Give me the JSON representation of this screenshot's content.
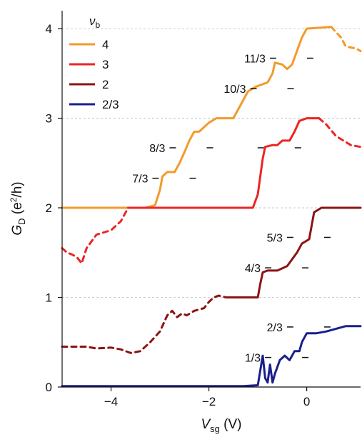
{
  "chart_data": {
    "type": "line",
    "xlabel": {
      "main": "V",
      "sub": "sg",
      "unit": " (V)"
    },
    "ylabel": {
      "main": "G",
      "sub": "D",
      "unit_pre": " (e",
      "unit_sup": "2",
      "unit_post": "/h)"
    },
    "xlim": [
      -5,
      1.1
    ],
    "ylim": [
      0,
      4.2
    ],
    "xticks": [
      -4,
      -2,
      0
    ],
    "yticks": [
      0,
      1,
      2,
      3,
      4
    ],
    "grid_y": true,
    "legend_title": {
      "main": "ν",
      "sub": "b"
    },
    "legend_position": "top-left",
    "series": [
      {
        "name": "4",
        "color": "#f39a2c",
        "solid": [
          [
            -5,
            2
          ],
          [
            -3.3,
            2
          ],
          [
            -3.1,
            2.03
          ],
          [
            -3.0,
            2.2
          ],
          [
            -2.95,
            2.35
          ],
          [
            -2.85,
            2.4
          ],
          [
            -2.7,
            2.4
          ],
          [
            -2.6,
            2.5
          ],
          [
            -2.5,
            2.62
          ],
          [
            -2.4,
            2.75
          ],
          [
            -2.3,
            2.85
          ],
          [
            -2.2,
            2.85
          ],
          [
            -2.1,
            2.9
          ],
          [
            -2.0,
            2.95
          ],
          [
            -1.85,
            3.0
          ],
          [
            -1.6,
            3.0
          ],
          [
            -1.5,
            3.0
          ],
          [
            -1.4,
            3.1
          ],
          [
            -1.3,
            3.2
          ],
          [
            -1.2,
            3.3
          ],
          [
            -1.05,
            3.35
          ],
          [
            -0.8,
            3.4
          ],
          [
            -0.7,
            3.5
          ],
          [
            -0.65,
            3.62
          ],
          [
            -0.5,
            3.6
          ],
          [
            -0.4,
            3.55
          ],
          [
            -0.3,
            3.6
          ],
          [
            -0.2,
            3.75
          ],
          [
            -0.1,
            3.9
          ],
          [
            0.0,
            4.0
          ],
          [
            0.5,
            4.02
          ]
        ],
        "dashed": [
          [
            0.5,
            4.02
          ],
          [
            0.7,
            3.9
          ],
          [
            0.8,
            3.8
          ],
          [
            1.0,
            3.78
          ],
          [
            1.1,
            3.75
          ]
        ]
      },
      {
        "name": "3",
        "color": "#ee2424",
        "dashed": [
          [
            -5,
            1.55
          ],
          [
            -4.9,
            1.5
          ],
          [
            -4.8,
            1.48
          ],
          [
            -4.7,
            1.45
          ],
          [
            -4.6,
            1.38
          ],
          [
            -4.5,
            1.55
          ],
          [
            -4.3,
            1.7
          ],
          [
            -4.0,
            1.75
          ],
          [
            -3.9,
            1.8
          ],
          [
            -3.8,
            1.85
          ],
          [
            -3.65,
            2.0
          ]
        ],
        "solid": [
          [
            -3.65,
            2.0
          ],
          [
            -1.1,
            2.0
          ],
          [
            -1.0,
            2.15
          ],
          [
            -0.95,
            2.35
          ],
          [
            -0.9,
            2.55
          ],
          [
            -0.85,
            2.68
          ],
          [
            -0.7,
            2.7
          ],
          [
            -0.6,
            2.7
          ],
          [
            -0.5,
            2.75
          ],
          [
            -0.35,
            2.75
          ],
          [
            -0.25,
            2.85
          ],
          [
            -0.15,
            2.97
          ],
          [
            0.0,
            3.0
          ],
          [
            0.25,
            3.0
          ]
        ],
        "dashed2": [
          [
            0.25,
            3.0
          ],
          [
            0.4,
            2.93
          ],
          [
            0.6,
            2.8
          ],
          [
            0.75,
            2.75
          ],
          [
            0.9,
            2.7
          ],
          [
            1.1,
            2.68
          ]
        ]
      },
      {
        "name": "2",
        "color": "#8b1414",
        "dashed": [
          [
            -5,
            0.45
          ],
          [
            -4.8,
            0.45
          ],
          [
            -4.5,
            0.45
          ],
          [
            -4.3,
            0.43
          ],
          [
            -4.0,
            0.44
          ],
          [
            -3.8,
            0.42
          ],
          [
            -3.6,
            0.38
          ],
          [
            -3.4,
            0.4
          ],
          [
            -3.2,
            0.5
          ],
          [
            -3.0,
            0.62
          ],
          [
            -2.85,
            0.8
          ],
          [
            -2.75,
            0.85
          ],
          [
            -2.65,
            0.78
          ],
          [
            -2.55,
            0.82
          ],
          [
            -2.45,
            0.8
          ],
          [
            -2.3,
            0.85
          ],
          [
            -2.1,
            0.88
          ],
          [
            -2.0,
            0.95
          ],
          [
            -1.9,
            1.0
          ],
          [
            -1.8,
            1.02
          ],
          [
            -1.65,
            1.0
          ]
        ],
        "solid": [
          [
            -1.65,
            1.0
          ],
          [
            -1.0,
            1.0
          ],
          [
            -0.95,
            1.15
          ],
          [
            -0.9,
            1.28
          ],
          [
            -0.8,
            1.3
          ],
          [
            -0.6,
            1.3
          ],
          [
            -0.4,
            1.35
          ],
          [
            -0.2,
            1.5
          ],
          [
            -0.1,
            1.6
          ],
          [
            0.05,
            1.65
          ],
          [
            0.15,
            1.95
          ],
          [
            0.3,
            2.0
          ],
          [
            1.1,
            2.0
          ]
        ]
      },
      {
        "name": "2/3",
        "color": "#1a1f8c",
        "solid": [
          [
            -5,
            0.01
          ],
          [
            -1.3,
            0.01
          ],
          [
            -1.0,
            0.02
          ],
          [
            -0.9,
            0.35
          ],
          [
            -0.85,
            0.1
          ],
          [
            -0.8,
            0.05
          ],
          [
            -0.75,
            0.25
          ],
          [
            -0.7,
            0.05
          ],
          [
            -0.65,
            0.15
          ],
          [
            -0.55,
            0.3
          ],
          [
            -0.45,
            0.35
          ],
          [
            -0.35,
            0.3
          ],
          [
            -0.25,
            0.4
          ],
          [
            -0.15,
            0.4
          ],
          [
            -0.1,
            0.5
          ],
          [
            0.0,
            0.6
          ],
          [
            0.2,
            0.6
          ],
          [
            0.4,
            0.62
          ],
          [
            0.6,
            0.65
          ],
          [
            0.8,
            0.68
          ],
          [
            1.1,
            0.68
          ]
        ]
      }
    ],
    "annotations": [
      {
        "text": "11/3",
        "x": -0.55,
        "y": 3.67
      },
      {
        "text": "10/3",
        "x": -0.95,
        "y": 3.33
      },
      {
        "text": "8/3",
        "x": -2.6,
        "y": 2.67
      },
      {
        "text": "7/3",
        "x": -2.95,
        "y": 2.33
      },
      {
        "text": "",
        "x": -0.8,
        "y": 2.67
      },
      {
        "text": "5/3",
        "x": -0.2,
        "y": 1.67
      },
      {
        "text": "4/3",
        "x": -0.65,
        "y": 1.33
      },
      {
        "text": "2/3",
        "x": -0.2,
        "y": 0.67
      },
      {
        "text": "1/3",
        "x": -0.65,
        "y": 0.33
      }
    ]
  }
}
